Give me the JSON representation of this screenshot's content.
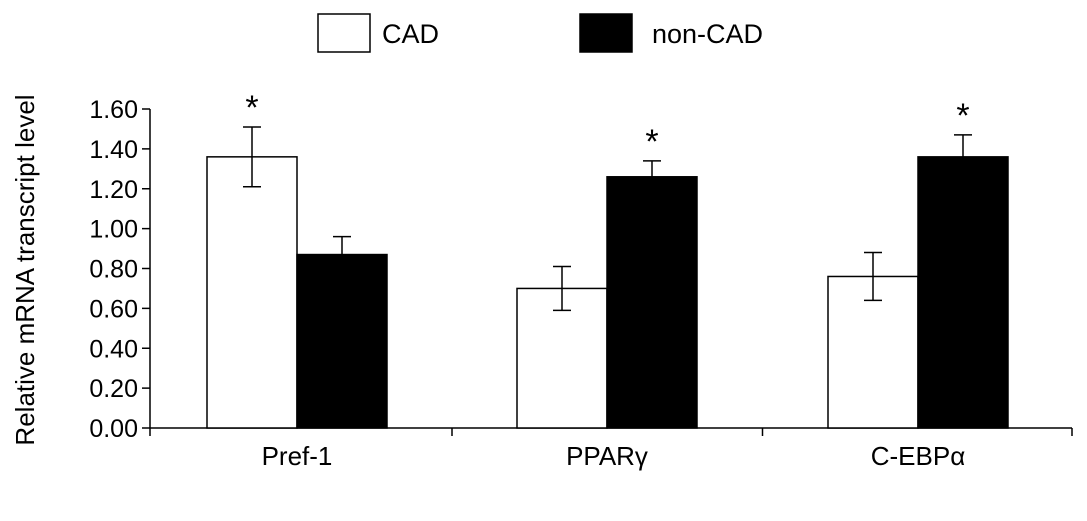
{
  "chart_data": {
    "type": "bar",
    "title": "",
    "xlabel": "",
    "ylabel": "Relative mRNA transcript level",
    "ylim": [
      0,
      1.6
    ],
    "yticks": [
      "0.00",
      "0.20",
      "0.40",
      "0.60",
      "0.80",
      "1.00",
      "1.20",
      "1.40",
      "1.60"
    ],
    "categories": [
      "Pref-1",
      "PPARγ",
      "C-EBPα"
    ],
    "series": [
      {
        "name": "CAD",
        "color": "#ffffff",
        "values": [
          1.36,
          0.7,
          0.76
        ],
        "errors": [
          0.15,
          0.11,
          0.12
        ]
      },
      {
        "name": "non-CAD",
        "color": "#000000",
        "values": [
          0.87,
          1.26,
          1.36
        ],
        "errors": [
          0.09,
          0.08,
          0.11
        ]
      }
    ],
    "significance": [
      {
        "category": "Pref-1",
        "series": "CAD",
        "label": "*"
      },
      {
        "category": "PPARγ",
        "series": "non-CAD",
        "label": "*"
      },
      {
        "category": "C-EBPα",
        "series": "non-CAD",
        "label": "*"
      }
    ],
    "legend_position": "top-center",
    "grid": false
  }
}
